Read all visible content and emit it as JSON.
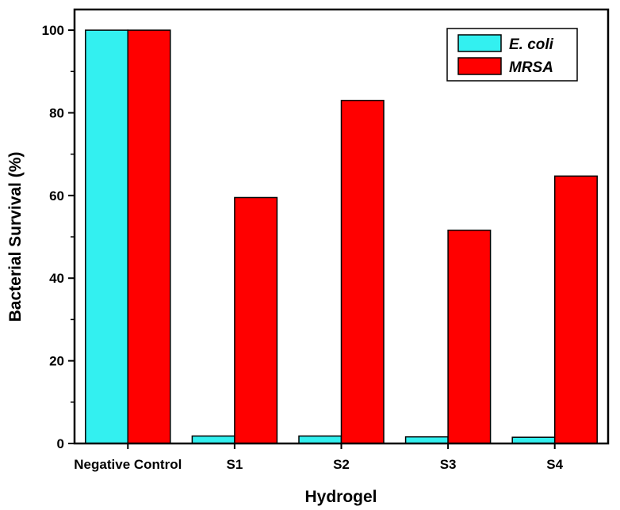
{
  "chart_data": {
    "type": "bar",
    "title": "",
    "xlabel": "Hydrogel",
    "ylabel": "Bacterial Survival (%)",
    "categories": [
      "Negative Control",
      "S1",
      "S2",
      "S3",
      "S4"
    ],
    "series": [
      {
        "name": "E. coli",
        "color": "#33f0f0",
        "values": [
          100,
          1.8,
          1.8,
          1.6,
          1.5
        ]
      },
      {
        "name": "MRSA",
        "color": "#ff0000",
        "values": [
          100,
          59.5,
          83,
          51.6,
          64.7
        ]
      }
    ],
    "ylim": [
      0,
      105
    ],
    "yticks": [
      0,
      20,
      40,
      60,
      80,
      100
    ],
    "ytick_labels": [
      "0",
      "20",
      "40",
      "60",
      "80",
      "100"
    ],
    "legend_position": "top-right",
    "grid": false
  }
}
